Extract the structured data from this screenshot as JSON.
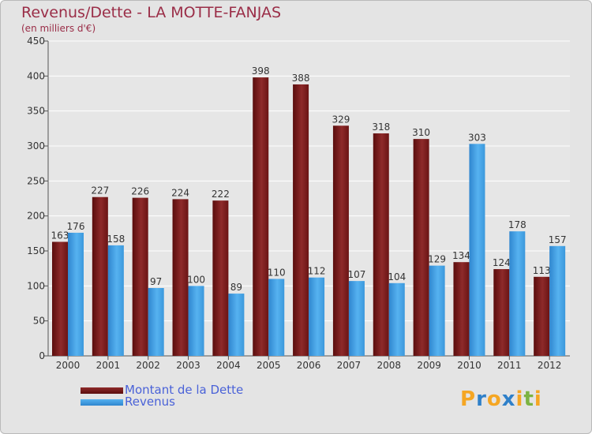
{
  "chart_data": {
    "type": "bar",
    "title": "Revenus/Dette - LA MOTTE-FANJAS",
    "subtitle": "(en milliers d'€)",
    "categories": [
      "2000",
      "2001",
      "2002",
      "2003",
      "2004",
      "2005",
      "2006",
      "2007",
      "2008",
      "2009",
      "2010",
      "2011",
      "2012"
    ],
    "series": [
      {
        "name": "Montant de la Dette",
        "color": "#7a1a1a",
        "values": [
          163,
          227,
          226,
          224,
          222,
          398,
          388,
          329,
          318,
          310,
          134,
          124,
          113
        ]
      },
      {
        "name": "Revenus",
        "color": "#3d9ee3",
        "values": [
          176,
          158,
          97,
          100,
          89,
          110,
          112,
          107,
          104,
          129,
          303,
          178,
          157
        ]
      }
    ],
    "ylim": [
      0,
      450
    ],
    "yticks": [
      0,
      50,
      100,
      150,
      200,
      250,
      300,
      350,
      400,
      450
    ],
    "grid": true,
    "legend_position": "bottom-left"
  },
  "logo": {
    "letters": [
      "P",
      "r",
      "o",
      "x",
      "i",
      "t",
      "i"
    ],
    "colors": [
      "#f5a623",
      "#2f80c9",
      "#f5a623",
      "#2f80c9",
      "#f5a623",
      "#7cb342",
      "#f5a623"
    ]
  }
}
